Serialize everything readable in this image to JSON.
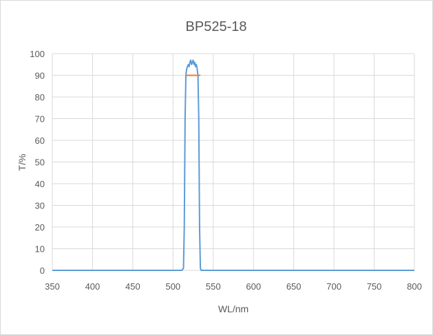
{
  "chart_data": {
    "type": "line",
    "title": "BP525-18",
    "xlabel": "WL/nm",
    "ylabel": "T/%",
    "xlim": [
      350,
      800
    ],
    "ylim": [
      0,
      100
    ],
    "x_ticks": [
      350,
      400,
      450,
      500,
      550,
      600,
      650,
      700,
      750,
      800
    ],
    "y_ticks": [
      0,
      10,
      20,
      30,
      40,
      50,
      60,
      70,
      80,
      90,
      100
    ],
    "grid": true,
    "legend": "none",
    "series": [
      {
        "color": "#5b9bd5",
        "x": [
          350,
          400,
          450,
          500,
          511,
          513,
          514,
          515,
          516,
          517,
          518,
          519,
          520,
          521,
          522,
          523,
          524,
          525,
          526,
          527,
          528,
          529,
          530,
          531,
          532,
          533,
          534,
          535,
          550,
          600,
          650,
          700,
          750,
          800
        ],
        "y": [
          0,
          0,
          0,
          0,
          0,
          1,
          20,
          70,
          90,
          93,
          94,
          95,
          94,
          96,
          97,
          95,
          96,
          97,
          95,
          96,
          94,
          95,
          93,
          90,
          70,
          20,
          1,
          0,
          0,
          0,
          0,
          0,
          0,
          0
        ]
      },
      {
        "color": "#ed7d31",
        "x": [
          516,
          534
        ],
        "y": [
          90,
          90
        ]
      }
    ]
  }
}
